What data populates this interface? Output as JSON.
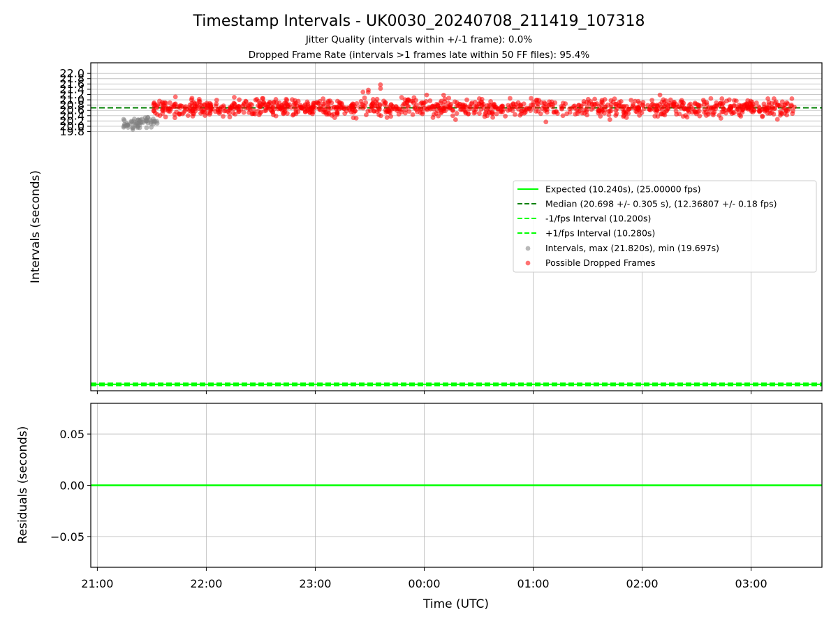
{
  "chart_data": [
    {
      "type": "scatter",
      "title": "Timestamp Intervals - UK0030_20240708_211419_107318",
      "subtitle_lines": [
        "Jitter Quality (intervals within +/-1 frame): 0.0%",
        "Dropped Frame Rate (intervals >1 frames late within 50 FF files): 95.4%"
      ],
      "ylabel": "Intervals (seconds)",
      "xlabel": "",
      "ylim": [
        10.0,
        22.4
      ],
      "xlim_hours": [
        20.94,
        27.65
      ],
      "y_ticks": [
        "19.8",
        "20.0",
        "20.2",
        "20.4",
        "20.6",
        "20.8",
        "21.0",
        "21.2",
        "21.4",
        "21.6",
        "21.8",
        "22.0"
      ],
      "y_tick_values": [
        19.8,
        20.0,
        20.2,
        20.4,
        20.6,
        20.8,
        21.0,
        21.2,
        21.4,
        21.6,
        21.8,
        22.0
      ],
      "x_grid_hours": [
        21,
        22,
        23,
        24,
        25,
        26,
        27
      ],
      "grid": true,
      "legend_position": "center-right",
      "lines": {
        "expected": 10.24,
        "median": 20.698,
        "minus_fps": 10.2,
        "plus_fps": 10.28
      },
      "series": [
        {
          "name": "Expected (10.240s), (25.00000 fps)",
          "kind": "hline",
          "color": "#00ff00",
          "style": "solid"
        },
        {
          "name": "Median (20.698 +/- 0.305 s), (12.36807 +/- 0.18 fps)",
          "kind": "hline",
          "color": "#008000",
          "style": "dashed"
        },
        {
          "name": "-1/fps Interval (10.200s)",
          "kind": "hline",
          "color": "#00ff00",
          "style": "dashed"
        },
        {
          "name": "+1/fps Interval (10.280s)",
          "kind": "hline",
          "color": "#00ff00",
          "style": "dashed"
        },
        {
          "name": "Intervals, max (21.820s), min (19.697s)",
          "kind": "scatter",
          "color": "#808080",
          "x_range_hours": [
            21.24,
            21.55
          ],
          "y_range": [
            19.7,
            20.5
          ],
          "approx_count": 60
        },
        {
          "name": "Possible Dropped Frames",
          "kind": "scatter",
          "color": "#ff0000",
          "x_range_hours": [
            21.5,
            27.4
          ],
          "y_range": [
            19.7,
            21.82
          ],
          "center": 20.7,
          "spread": 0.305,
          "approx_count": 1100
        }
      ]
    },
    {
      "type": "line",
      "ylabel": "Residuals (seconds)",
      "xlabel": "Time (UTC)",
      "ylim": [
        -0.08,
        0.08
      ],
      "y_ticks": [
        "0.05",
        "0.00",
        "−0.05"
      ],
      "y_tick_values": [
        0.05,
        0.0,
        -0.05
      ],
      "x_ticks": [
        "21:00",
        "22:00",
        "23:00",
        "00:00",
        "01:00",
        "02:00",
        "03:00"
      ],
      "x_tick_hours": [
        21,
        22,
        23,
        24,
        25,
        26,
        27
      ],
      "grid": true,
      "residual_line": 0.0,
      "line_color": "#00ff00"
    }
  ]
}
